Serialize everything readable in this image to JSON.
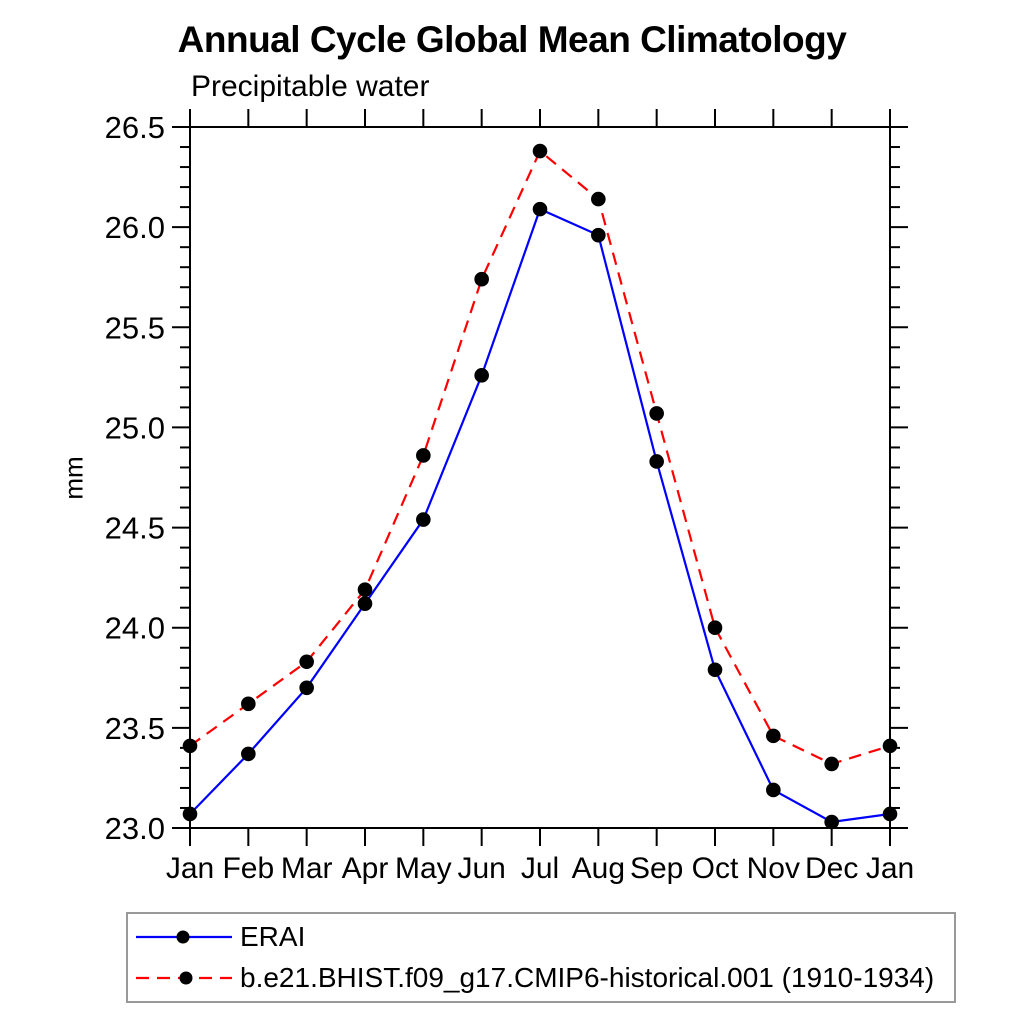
{
  "chart_data": {
    "type": "line",
    "title": "Annual Cycle Global Mean Climatology",
    "subtitle": "Precipitable water",
    "ylabel": "mm",
    "xlabel": "",
    "categories": [
      "Jan",
      "Feb",
      "Mar",
      "Apr",
      "May",
      "Jun",
      "Jul",
      "Aug",
      "Sep",
      "Oct",
      "Nov",
      "Dec",
      "Jan"
    ],
    "series": [
      {
        "id": "erai",
        "name": "ERAI",
        "color": "#0000ff",
        "line_style": "solid",
        "marker": "circle",
        "marker_color": "#000000",
        "values": [
          23.07,
          23.37,
          23.7,
          24.12,
          24.54,
          25.26,
          26.09,
          25.96,
          24.83,
          23.79,
          23.19,
          23.03,
          23.07
        ]
      },
      {
        "id": "cesm-historical",
        "name": "b.e21.BHIST.f09_g17.CMIP6-historical.001 (1910-1934)",
        "color": "#ff0000",
        "line_style": "dashed",
        "marker": "circle",
        "marker_color": "#000000",
        "values": [
          23.41,
          23.62,
          23.83,
          24.19,
          24.86,
          25.74,
          26.38,
          26.14,
          25.07,
          24.0,
          23.46,
          23.32,
          23.41
        ]
      }
    ],
    "ylim": [
      23.0,
      26.5
    ],
    "y_major_step": 0.5,
    "y_minor_step": 0.1,
    "y_tick_labels": [
      "23.0",
      "23.5",
      "24.0",
      "24.5",
      "25.0",
      "25.5",
      "26.0",
      "26.5"
    ],
    "axis_color": "#000000",
    "grid": false,
    "legend_position": "bottom-left-box"
  }
}
